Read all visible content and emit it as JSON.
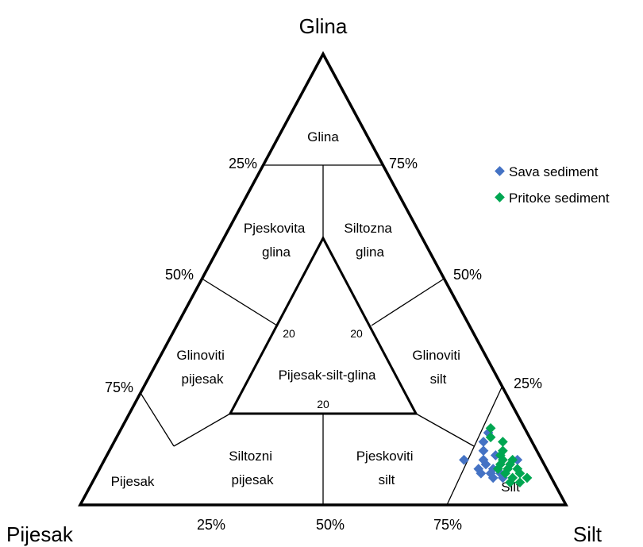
{
  "vertices": {
    "top": "Glina",
    "left": "Pijesak",
    "right": "Silt"
  },
  "ticks": {
    "left_25": "25%",
    "left_50": "50%",
    "left_75": "75%",
    "right_75": "75%",
    "right_50": "50%",
    "right_25": "25%",
    "bottom_25": "25%",
    "bottom_50": "50%",
    "bottom_75": "75%"
  },
  "regions": {
    "glina": [
      "Glina"
    ],
    "pjeskovita_glina": [
      "Pjeskovita",
      "glina"
    ],
    "siltozna_glina": [
      "Siltozna",
      "glina"
    ],
    "glinoviti_pijesak": [
      "Glinoviti",
      "pijesak"
    ],
    "glinoviti_silt": [
      "Glinoviti",
      "silt"
    ],
    "pijesak_silt_glina": [
      "Pijesak-silt-glina"
    ],
    "pijesak": [
      "Pijesak"
    ],
    "siltozni_pijesak": [
      "Siltozni",
      "pijesak"
    ],
    "pjeskoviti_silt": [
      "Pjeskoviti",
      "silt"
    ],
    "silt": [
      "Silt"
    ]
  },
  "inner_labels": {
    "left": "20",
    "right": "20",
    "bottom": "20"
  },
  "legend": [
    {
      "label": "Sava sediment",
      "color": "#4472C4"
    },
    {
      "label": "Pritoke sediment",
      "color": "#00A651"
    }
  ],
  "chart_data": {
    "type": "scatter",
    "subtype": "ternary",
    "components": [
      "Glina",
      "Pijesak",
      "Silt"
    ],
    "series": [
      {
        "name": "Sava sediment",
        "color": "#4472C4",
        "points": [
          {
            "glina": 10,
            "pijesak": 16,
            "silt": 74
          },
          {
            "glina": 16,
            "pijesak": 8,
            "silt": 76
          },
          {
            "glina": 14,
            "pijesak": 10,
            "silt": 76
          },
          {
            "glina": 12,
            "pijesak": 11,
            "silt": 77
          },
          {
            "glina": 10,
            "pijesak": 12,
            "silt": 78
          },
          {
            "glina": 8,
            "pijesak": 14,
            "silt": 78
          },
          {
            "glina": 8,
            "pijesak": 11,
            "silt": 81
          },
          {
            "glina": 7,
            "pijesak": 14,
            "silt": 79
          },
          {
            "glina": 7,
            "pijesak": 12,
            "silt": 81
          },
          {
            "glina": 7,
            "pijesak": 10,
            "silt": 83
          },
          {
            "glina": 6,
            "pijesak": 12,
            "silt": 82
          },
          {
            "glina": 6,
            "pijesak": 10,
            "silt": 84
          },
          {
            "glina": 10,
            "pijesak": 5,
            "silt": 85
          },
          {
            "glina": 9,
            "pijesak": 12,
            "silt": 79
          },
          {
            "glina": 11,
            "pijesak": 9,
            "silt": 80
          }
        ]
      },
      {
        "name": "Pritoke sediment",
        "color": "#00A651",
        "points": [
          {
            "glina": 17,
            "pijesak": 7,
            "silt": 76
          },
          {
            "glina": 15,
            "pijesak": 8,
            "silt": 77
          },
          {
            "glina": 14,
            "pijesak": 6,
            "silt": 80
          },
          {
            "glina": 12,
            "pijesak": 7,
            "silt": 81
          },
          {
            "glina": 11,
            "pijesak": 8,
            "silt": 81
          },
          {
            "glina": 10,
            "pijesak": 8,
            "silt": 82
          },
          {
            "glina": 9,
            "pijesak": 9,
            "silt": 82
          },
          {
            "glina": 9,
            "pijesak": 7,
            "silt": 84
          },
          {
            "glina": 8,
            "pijesak": 8,
            "silt": 84
          },
          {
            "glina": 8,
            "pijesak": 6,
            "silt": 86
          },
          {
            "glina": 7,
            "pijesak": 6,
            "silt": 87
          },
          {
            "glina": 7,
            "pijesak": 9,
            "silt": 84
          },
          {
            "glina": 6,
            "pijesak": 8,
            "silt": 86
          },
          {
            "glina": 6,
            "pijesak": 5,
            "silt": 89
          },
          {
            "glina": 5,
            "pijesak": 7,
            "silt": 88
          },
          {
            "glina": 5,
            "pijesak": 9,
            "silt": 86
          },
          {
            "glina": 8,
            "pijesak": 10,
            "silt": 82
          },
          {
            "glina": 10,
            "pijesak": 6,
            "silt": 84
          }
        ]
      }
    ]
  }
}
